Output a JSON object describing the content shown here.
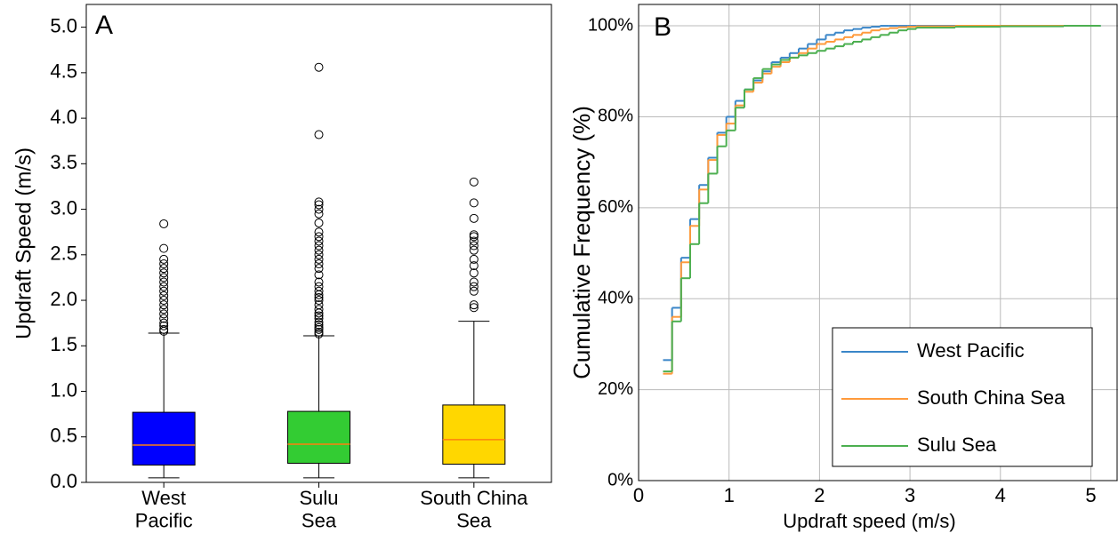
{
  "chart_data": [
    {
      "type": "box",
      "panel_label": "A",
      "y_label": "Updraft Speed (m/s)",
      "categories": [
        "West\nPacific",
        "Sulu\nSea",
        "South China\nSea"
      ],
      "boxes": [
        {
          "color": "#0000ff",
          "whislo": 0.05,
          "q1": 0.19,
          "median": 0.41,
          "q3": 0.77,
          "whishi": 1.64,
          "fliers": [
            1.66,
            1.68,
            1.72,
            1.75,
            1.8,
            1.85,
            1.9,
            1.95,
            2.0,
            2.05,
            2.1,
            2.15,
            2.2,
            2.25,
            2.3,
            2.35,
            2.4,
            2.45,
            2.57,
            2.84
          ]
        },
        {
          "color": "#33cc33",
          "whislo": 0.05,
          "q1": 0.21,
          "median": 0.42,
          "q3": 0.78,
          "whishi": 1.61,
          "fliers": [
            1.63,
            1.65,
            1.68,
            1.7,
            1.73,
            1.76,
            1.8,
            1.83,
            1.86,
            1.9,
            1.95,
            2.0,
            2.03,
            2.06,
            2.1,
            2.15,
            2.2,
            2.28,
            2.35,
            2.4,
            2.45,
            2.5,
            2.55,
            2.6,
            2.65,
            2.7,
            2.75,
            2.85,
            2.95,
            3.0,
            3.05,
            3.08,
            3.82,
            4.56
          ]
        },
        {
          "color": "#ffd700",
          "whislo": 0.05,
          "q1": 0.2,
          "median": 0.47,
          "q3": 0.85,
          "whishi": 1.77,
          "fliers": [
            1.92,
            1.95,
            2.1,
            2.15,
            2.2,
            2.3,
            2.38,
            2.45,
            2.55,
            2.6,
            2.65,
            2.7,
            2.72,
            2.9,
            3.07,
            3.3
          ]
        }
      ],
      "median_color": "#ff7f0e",
      "ylim": [
        0,
        5.25
      ],
      "yticks": [
        {
          "value": 0,
          "label": "0.0"
        },
        0.5,
        {
          "value": 1,
          "label": "1.0"
        },
        1.5,
        {
          "value": 2,
          "label": "2.0"
        },
        2.5,
        {
          "value": 3,
          "label": "3.0"
        },
        3.5,
        {
          "value": 4,
          "label": "4.0"
        },
        4.5,
        {
          "value": 5,
          "label": "5.0"
        }
      ]
    },
    {
      "type": "step",
      "panel_label": "B",
      "x_label": "Updraft speed (m/s)",
      "y_label": "Cumulative Frequency (%)",
      "x": [
        0.27,
        0.37,
        0.47,
        0.57,
        0.67,
        0.77,
        0.87,
        0.97,
        1.07,
        1.17,
        1.27,
        1.37,
        1.47,
        1.57,
        1.67,
        1.77,
        1.87,
        1.97,
        2.07,
        2.17,
        2.27,
        2.37,
        2.47,
        2.57,
        2.67,
        2.77,
        2.87,
        2.97,
        3.07,
        3.5,
        4.0,
        4.7,
        5.1
      ],
      "series": [
        {
          "name": "West Pacific",
          "color": "#3a86c8",
          "values": [
            26.5,
            38,
            49,
            57.5,
            65,
            71,
            76.5,
            80,
            83.5,
            86,
            88,
            90,
            92,
            93,
            94,
            95,
            96,
            97,
            98,
            98.5,
            99,
            99.3,
            99.6,
            99.8,
            100,
            100,
            100,
            100,
            100,
            100,
            100,
            100,
            100
          ]
        },
        {
          "name": "South China Sea",
          "color": "#ff9a3c",
          "values": [
            23.5,
            36,
            48,
            56,
            64,
            70.5,
            76,
            78.5,
            82.5,
            85.5,
            87.5,
            89.5,
            91,
            92,
            93,
            94,
            95,
            96,
            96.5,
            97,
            97.5,
            98,
            98.5,
            99,
            99.3,
            99.5,
            99.7,
            99.8,
            99.9,
            100,
            100,
            100,
            null
          ]
        },
        {
          "name": "Sulu Sea",
          "color": "#4caf50",
          "values": [
            24,
            35,
            44.5,
            52,
            61,
            67.5,
            73.5,
            77,
            82,
            86,
            88.5,
            90.5,
            91.5,
            92.5,
            93,
            93.5,
            94,
            94.5,
            95,
            95.5,
            96,
            96.5,
            97,
            97.5,
            98,
            98.5,
            99,
            99.3,
            99.6,
            99.8,
            99.9,
            100,
            100
          ]
        }
      ],
      "xlim": [
        0,
        5.3
      ],
      "xticks": [
        0,
        1,
        2,
        3,
        4,
        5
      ],
      "ylim": [
        0,
        104.7
      ],
      "yticks": [
        {
          "value": 0,
          "label": "0%"
        },
        {
          "value": 20,
          "label": "20%"
        },
        {
          "value": 40,
          "label": "40%"
        },
        {
          "value": 60,
          "label": "60%"
        },
        {
          "value": 80,
          "label": "80%"
        },
        {
          "value": 100,
          "label": "100%"
        }
      ],
      "grid": true,
      "legend": "lower right"
    }
  ]
}
